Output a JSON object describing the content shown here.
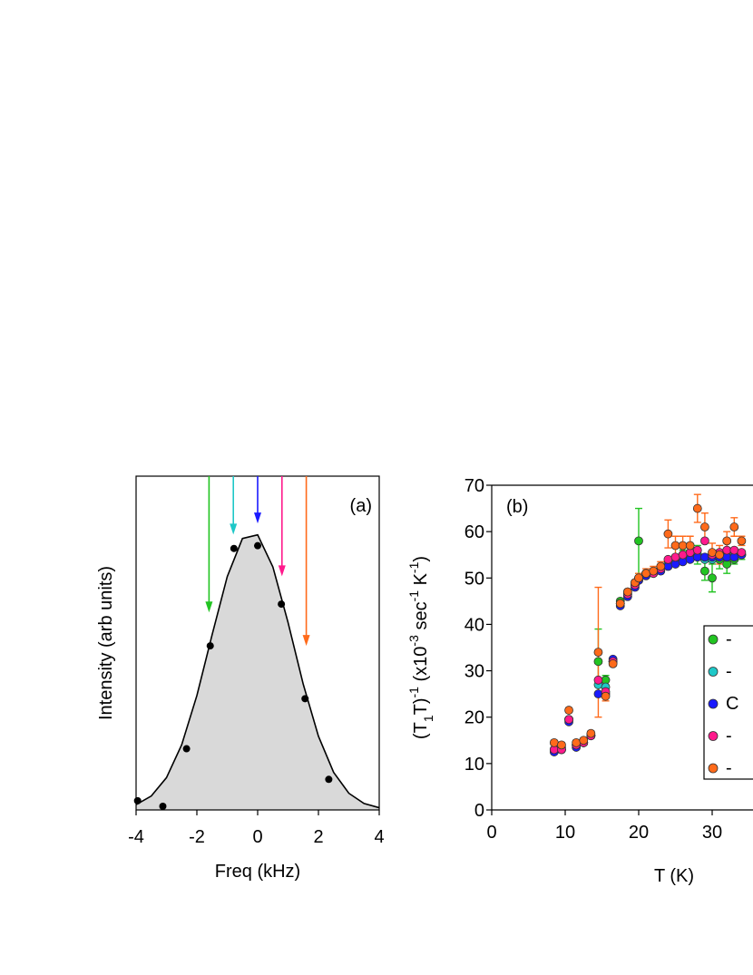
{
  "chart_data": [
    {
      "type": "scatter",
      "label": "(a)",
      "xlabel": "Freq (kHz)",
      "ylabel": "Intensity (arb units)",
      "xlim": [
        -4,
        4
      ],
      "xticks": [
        -4,
        -2,
        0,
        2,
        4
      ],
      "ylim": [
        0,
        1.2
      ],
      "points": {
        "x": [
          -3.95,
          -3.12,
          -2.34,
          -1.56,
          -0.78,
          0,
          0.78,
          1.56,
          2.34
        ],
        "values": [
          0.033,
          0.013,
          0.22,
          0.59,
          0.94,
          0.95,
          0.74,
          0.4,
          0.11
        ],
        "color": "#000000"
      },
      "fit": {
        "x": [
          -4,
          -3.5,
          -3,
          -2.5,
          -2,
          -1.5,
          -1,
          -0.5,
          0,
          0.5,
          1,
          1.5,
          2,
          2.5,
          3,
          3.5,
          4
        ],
        "values": [
          0.019,
          0.05,
          0.116,
          0.234,
          0.411,
          0.629,
          0.839,
          0.976,
          0.989,
          0.874,
          0.674,
          0.452,
          0.265,
          0.135,
          0.06,
          0.023,
          0.008
        ],
        "color": "#000000",
        "fill": "#d9d9d9"
      },
      "arrows": [
        {
          "x": -1.6,
          "y": 0.71,
          "color": "#22c422"
        },
        {
          "x": -0.8,
          "y": 0.99,
          "color": "#1fc8c8"
        },
        {
          "x": 0,
          "y": 1.03,
          "color": "#1a1aff"
        },
        {
          "x": 0.8,
          "y": 0.84,
          "color": "#ff1a8c"
        },
        {
          "x": 1.6,
          "y": 0.59,
          "color": "#ff6a1a"
        }
      ]
    },
    {
      "type": "scatter",
      "label": "(b)",
      "xlabel": "T (K)",
      "ylabel_parts": [
        {
          "text": "(T"
        },
        {
          "text": "1",
          "sub": true
        },
        {
          "text": "T)"
        },
        {
          "text": "-1",
          "sup": true
        },
        {
          "text": " (x10"
        },
        {
          "text": "-3",
          "sup": true
        },
        {
          "text": " sec"
        },
        {
          "text": "-1",
          "sup": true
        },
        {
          "text": " K"
        },
        {
          "text": "-1",
          "sup": true
        },
        {
          "text": ")"
        }
      ],
      "xlim": [
        0,
        36
      ],
      "xticks": [
        0,
        10,
        20,
        30
      ],
      "ylim": [
        0,
        70
      ],
      "yticks": [
        0,
        10,
        20,
        30,
        40,
        50,
        60,
        70
      ],
      "legend": "right",
      "x": [
        8.5,
        9.5,
        10.5,
        11.5,
        12.5,
        13.5,
        14.5,
        15.5,
        16.5,
        17.5,
        18.5,
        19.5,
        20,
        21,
        22,
        23,
        24,
        25,
        26,
        27,
        28,
        29,
        30,
        31,
        32,
        33,
        34
      ],
      "series": [
        {
          "name": "-",
          "color": "#22c422",
          "values": [
            13,
            13.5,
            19.5,
            14,
            14.5,
            16,
            32,
            28,
            32,
            45,
            47,
            49,
            58,
            51,
            51,
            52,
            53,
            54,
            55,
            55,
            55,
            51.5,
            50,
            54,
            53,
            54,
            55
          ],
          "errors": [
            0.5,
            0.5,
            0.5,
            0.5,
            0.5,
            0.5,
            7,
            1,
            0.5,
            0.5,
            0.5,
            0.5,
            7,
            0.5,
            0.5,
            0.5,
            1,
            1,
            1,
            1,
            2,
            2,
            3,
            2,
            2,
            1,
            1
          ]
        },
        {
          "name": "-",
          "color": "#1fc8c8",
          "values": [
            13,
            13,
            19.5,
            14,
            14.5,
            16,
            27,
            26.5,
            32,
            44.5,
            46.5,
            48.5,
            49.5,
            50.5,
            51,
            52,
            53,
            53.5,
            54,
            54.5,
            55,
            54,
            54,
            55,
            54.5,
            55,
            55
          ]
        },
        {
          "name": "C",
          "color": "#1a1aff",
          "values": [
            12.5,
            13,
            19,
            13.5,
            14.5,
            16,
            25,
            25,
            32.5,
            44,
            46,
            48,
            49.5,
            50.5,
            51,
            51.5,
            52.5,
            53,
            53.5,
            54,
            54.5,
            54.5,
            54.5,
            54.5,
            54.5,
            54.5,
            55
          ]
        },
        {
          "name": "-",
          "color": "#ff1a8c",
          "values": [
            13,
            13,
            19.5,
            14,
            14.5,
            16,
            28,
            25.5,
            32,
            44.5,
            46.5,
            48.5,
            50,
            51,
            51,
            52,
            54,
            54.5,
            55,
            55.5,
            56,
            58,
            55,
            55.5,
            56,
            56,
            55.5
          ]
        },
        {
          "name": "-",
          "color": "#ff6a1a",
          "values": [
            14.5,
            14,
            21.5,
            14.5,
            15,
            16.5,
            34,
            24.5,
            31.5,
            44.5,
            47,
            49,
            50,
            51,
            51.5,
            52.5,
            59.5,
            57,
            57,
            57,
            65,
            61,
            55.5,
            55,
            58,
            61,
            58
          ],
          "errors": [
            0.5,
            0.5,
            0.5,
            0.5,
            0.5,
            0.5,
            14,
            1,
            0.5,
            0.5,
            0.5,
            0.5,
            1,
            1,
            1,
            1,
            3,
            2,
            2,
            2,
            3,
            3,
            2,
            2,
            2,
            2,
            1
          ]
        }
      ]
    }
  ]
}
